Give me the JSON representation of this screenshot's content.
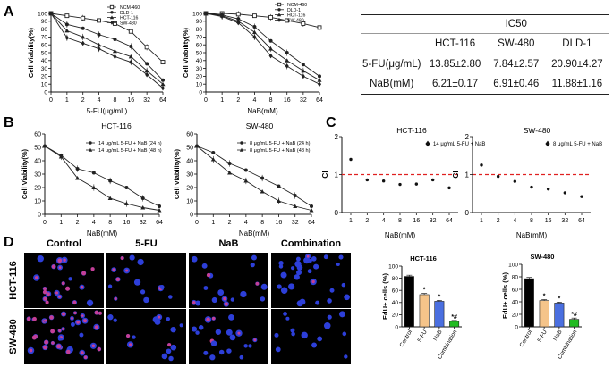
{
  "panel_letters": [
    "A",
    "B",
    "C",
    "D"
  ],
  "ic50_table": {
    "title": "IC50",
    "columns": [
      "HCT-116",
      "SW-480",
      "DLD-1"
    ],
    "rows": [
      {
        "label": "5-FU(μg/mL)",
        "values": [
          "13.85±2.80",
          "7.84±2.57",
          "20.90±4.27"
        ]
      },
      {
        "label": "NaB(mM)",
        "values": [
          "6.21±0.17",
          "6.91±0.46",
          "11.88±1.16"
        ]
      }
    ]
  },
  "micrograph": {
    "col_labels": [
      "Control",
      "5-FU",
      "NaB",
      "Combination"
    ],
    "row_labels": [
      "HCT-116",
      "SW-480"
    ],
    "colors": {
      "nucleus": "#2d3fd9",
      "edu": "#e0408a",
      "background": "#000000"
    }
  },
  "chart_data": [
    {
      "id": "A1",
      "type": "line",
      "xlabel": "5-FU(μg/mL)",
      "ylabel": "Cell Viability(%)",
      "categories": [
        "0",
        "1",
        "2",
        "4",
        "8",
        "16",
        "32",
        "64"
      ],
      "ylim": [
        0,
        100
      ],
      "yticks": [
        0,
        10,
        20,
        30,
        40,
        50,
        60,
        70,
        80,
        90,
        100
      ],
      "series": [
        {
          "name": "NCM-460",
          "marker": "open-square",
          "values": [
            100,
            97,
            94,
            91,
            87,
            77,
            57,
            38
          ]
        },
        {
          "name": "DLD-1",
          "marker": "filled-circle",
          "values": [
            100,
            86,
            81,
            73,
            67,
            58,
            36,
            15
          ]
        },
        {
          "name": "HCT-116",
          "marker": "triangle",
          "values": [
            100,
            78,
            70,
            60,
            52,
            45,
            27,
            10
          ]
        },
        {
          "name": "SW-480",
          "marker": "diamond",
          "values": [
            100,
            69,
            62,
            55,
            45,
            38,
            22,
            5
          ]
        }
      ],
      "legend": "top-right"
    },
    {
      "id": "A2",
      "type": "line",
      "xlabel": "NaB(mM)",
      "ylabel": "Cell Viability(%)",
      "categories": [
        "0",
        "1",
        "2",
        "4",
        "8",
        "16",
        "32",
        "64"
      ],
      "ylim": [
        0,
        100
      ],
      "yticks": [
        0,
        10,
        20,
        30,
        40,
        50,
        60,
        70,
        80,
        90,
        100
      ],
      "series": [
        {
          "name": "NCM-460",
          "marker": "open-square",
          "values": [
            100,
            100,
            99,
            97,
            95,
            91,
            87,
            82
          ]
        },
        {
          "name": "DLD-1",
          "marker": "filled-circle",
          "values": [
            100,
            98,
            93,
            83,
            65,
            50,
            35,
            20
          ]
        },
        {
          "name": "HCT-116",
          "marker": "triangle",
          "values": [
            100,
            97,
            90,
            76,
            55,
            40,
            27,
            15
          ]
        },
        {
          "name": "SW-480",
          "marker": "diamond",
          "values": [
            100,
            96,
            88,
            70,
            46,
            33,
            20,
            10
          ]
        }
      ],
      "legend": "top-right"
    },
    {
      "id": "B1",
      "type": "line",
      "title": "HCT-116",
      "xlabel": "NaB(mM)",
      "ylabel": "Cell Viability(%)",
      "categories": [
        "0",
        "1",
        "2",
        "4",
        "8",
        "16",
        "32",
        "64"
      ],
      "ylim": [
        0,
        60
      ],
      "yticks": [
        0,
        10,
        20,
        30,
        40,
        50,
        60
      ],
      "series": [
        {
          "name": "14 μg/mL 5-FU + NaB (24 h)",
          "marker": "filled-circle",
          "values": [
            51,
            44,
            34,
            31,
            25,
            20,
            12,
            6
          ]
        },
        {
          "name": "14 μg/mL 5-FU + NaB (48 h)",
          "marker": "triangle",
          "values": [
            51,
            43,
            27,
            20,
            12,
            8,
            5,
            3
          ]
        }
      ],
      "legend": "top-right"
    },
    {
      "id": "B2",
      "type": "line",
      "title": "SW-480",
      "xlabel": "NaB(mM)",
      "ylabel": "Cell Viability(%)",
      "categories": [
        "0",
        "1",
        "2",
        "4",
        "8",
        "16",
        "32",
        "64"
      ],
      "ylim": [
        0,
        60
      ],
      "yticks": [
        0,
        10,
        20,
        30,
        40,
        50,
        60
      ],
      "series": [
        {
          "name": "8 μg/mL 5-FU + NaB (24 h)",
          "marker": "filled-circle",
          "values": [
            51,
            46,
            38,
            33,
            27,
            21,
            14,
            6
          ]
        },
        {
          "name": "8 μg/mL 5-FU + NaB (48 h)",
          "marker": "triangle",
          "values": [
            51,
            41,
            31,
            25,
            17,
            10,
            6,
            3
          ]
        }
      ],
      "legend": "top-right"
    },
    {
      "id": "C1",
      "type": "scatter",
      "title": "HCT-116",
      "xlabel": "NaB(mM)",
      "ylabel": "CI",
      "categories": [
        "1",
        "2",
        "4",
        "8",
        "16",
        "32",
        "64"
      ],
      "ylim": [
        0,
        2
      ],
      "yticks": [
        0,
        1,
        2
      ],
      "reference_line": 1,
      "series": [
        {
          "name": "14 μg/mL 5-FU + NaB",
          "values": [
            1.4,
            0.86,
            0.83,
            0.74,
            0.75,
            0.86,
            0.65
          ]
        }
      ],
      "legend": "top-right"
    },
    {
      "id": "C2",
      "type": "scatter",
      "title": "SW-480",
      "xlabel": "NaB(mM)",
      "ylabel": "CI",
      "categories": [
        "1",
        "2",
        "4",
        "8",
        "16",
        "32",
        "64"
      ],
      "ylim": [
        0,
        2
      ],
      "yticks": [
        0,
        1,
        2
      ],
      "reference_line": 1,
      "series": [
        {
          "name": "8 μg/mL 5-FU + NaB",
          "values": [
            1.25,
            0.95,
            0.82,
            0.67,
            0.62,
            0.52,
            0.42
          ]
        }
      ],
      "legend": "top-right"
    },
    {
      "id": "D1",
      "type": "bar",
      "title": "HCT-116",
      "ylabel": "EdU+ cells (%)",
      "categories": [
        "Control",
        "5-FU",
        "NaB",
        "Combination"
      ],
      "values": [
        83,
        53,
        42,
        9
      ],
      "errors": [
        2,
        2,
        1.5,
        1.5
      ],
      "annotations": [
        "",
        "*",
        "*",
        "*#"
      ],
      "colors": [
        "#000000",
        "#f5c48a",
        "#4a6fe0",
        "#22bb22"
      ],
      "ylim": [
        0,
        100
      ],
      "yticks": [
        0,
        20,
        40,
        60,
        80,
        100
      ]
    },
    {
      "id": "D2",
      "type": "bar",
      "title": "SW-480",
      "ylabel": "EdU+ cells (%)",
      "categories": [
        "Control",
        "5-FU",
        "NaB",
        "Combination"
      ],
      "values": [
        77,
        42,
        38,
        12
      ],
      "errors": [
        2,
        1.5,
        1.5,
        2
      ],
      "annotations": [
        "",
        "*",
        "*",
        "*#"
      ],
      "colors": [
        "#000000",
        "#f5c48a",
        "#4a6fe0",
        "#22bb22"
      ],
      "ylim": [
        0,
        100
      ],
      "yticks": [
        0,
        20,
        40,
        60,
        80,
        100
      ]
    }
  ]
}
